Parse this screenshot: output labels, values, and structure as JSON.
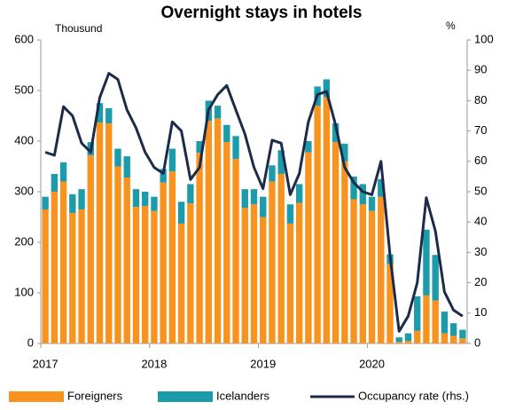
{
  "chart_data": {
    "type": "bar",
    "stacked": true,
    "title": "Overnight stays in hotels",
    "y_label": "Thousund",
    "y2_label": "%",
    "categories": [
      "2017",
      null,
      null,
      null,
      null,
      null,
      null,
      null,
      null,
      null,
      null,
      null,
      "2018",
      null,
      null,
      null,
      null,
      null,
      null,
      null,
      null,
      null,
      null,
      null,
      "2019",
      null,
      null,
      null,
      null,
      null,
      null,
      null,
      null,
      null,
      null,
      null,
      "2020",
      null,
      null,
      null,
      null,
      null,
      null,
      null,
      null,
      null,
      null
    ],
    "ylim": [
      0,
      600
    ],
    "yticks": [
      0,
      100,
      200,
      300,
      400,
      500,
      600
    ],
    "y2lim": [
      0,
      100
    ],
    "y2ticks": [
      0,
      10,
      20,
      30,
      40,
      50,
      60,
      70,
      80,
      90,
      100
    ],
    "series": [
      {
        "name": "Foreigners",
        "type": "bar",
        "color": "#f7931e",
        "values": [
          265,
          300,
          320,
          258,
          265,
          372,
          437,
          435,
          350,
          328,
          270,
          272,
          262,
          318,
          340,
          237,
          277,
          377,
          440,
          445,
          398,
          365,
          268,
          275,
          250,
          320,
          335,
          237,
          278,
          378,
          470,
          487,
          398,
          360,
          285,
          275,
          262,
          290,
          157,
          3,
          5,
          25,
          95,
          85,
          20,
          15,
          10
        ]
      },
      {
        "name": "Icelanders",
        "type": "bar",
        "color": "#1c9bab",
        "values": [
          25,
          35,
          38,
          37,
          40,
          26,
          38,
          30,
          35,
          42,
          35,
          28,
          28,
          27,
          45,
          43,
          38,
          23,
          40,
          25,
          34,
          45,
          37,
          30,
          40,
          32,
          47,
          38,
          37,
          22,
          38,
          35,
          37,
          35,
          45,
          40,
          28,
          35,
          19,
          9,
          15,
          68,
          130,
          90,
          43,
          25,
          17
        ]
      },
      {
        "name": "Occupancy rate (rhs.)",
        "type": "line",
        "axis": "y2",
        "color": "#1d2b4a",
        "values": [
          63,
          62,
          78,
          75,
          66,
          63,
          81,
          89,
          87,
          77,
          71,
          63,
          58,
          56,
          73,
          70,
          54,
          58,
          77,
          82,
          85,
          77,
          69,
          58,
          51,
          67,
          66,
          49,
          56,
          73,
          82,
          83,
          72,
          58,
          53,
          50,
          49,
          60,
          29,
          4,
          9,
          20,
          48,
          37,
          17,
          11,
          9
        ]
      }
    ]
  }
}
